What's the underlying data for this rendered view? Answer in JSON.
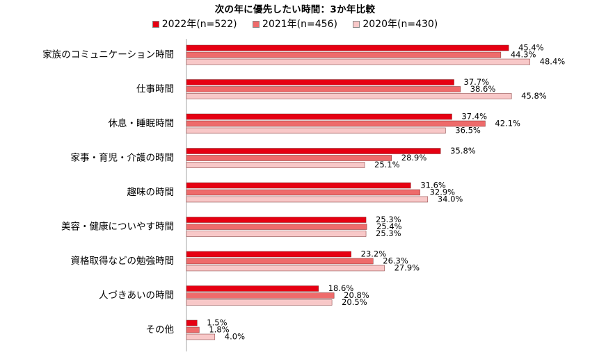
{
  "chart_data": {
    "type": "bar",
    "orientation": "horizontal",
    "title": "次の年に優先したい時間：3か年比較",
    "categories": [
      "家族のコミュニケーション時間",
      "仕事時間",
      "休息・睡眠時間",
      "家事・育児・介護の時間",
      "趣味の時間",
      "美容・健康についやす時間",
      "資格取得などの勉強時間",
      "人づきあいの時間",
      "その他"
    ],
    "series": [
      {
        "name": "2022年(n=522)",
        "color": "#e60012",
        "values": [
          45.4,
          37.7,
          37.4,
          35.8,
          31.6,
          25.3,
          23.2,
          18.6,
          1.5
        ]
      },
      {
        "name": "2021年(n=456)",
        "color": "#ee6b6b",
        "values": [
          44.3,
          38.6,
          42.1,
          28.9,
          32.9,
          25.4,
          26.3,
          20.8,
          1.8
        ]
      },
      {
        "name": "2020年(n=430)",
        "color": "#f8c8c8",
        "values": [
          48.4,
          45.8,
          36.5,
          25.1,
          34.0,
          25.3,
          27.9,
          20.5,
          4.0
        ]
      }
    ],
    "value_suffix": "%",
    "xlim": [
      0,
      50
    ],
    "grid": false,
    "legend_position": "top"
  }
}
